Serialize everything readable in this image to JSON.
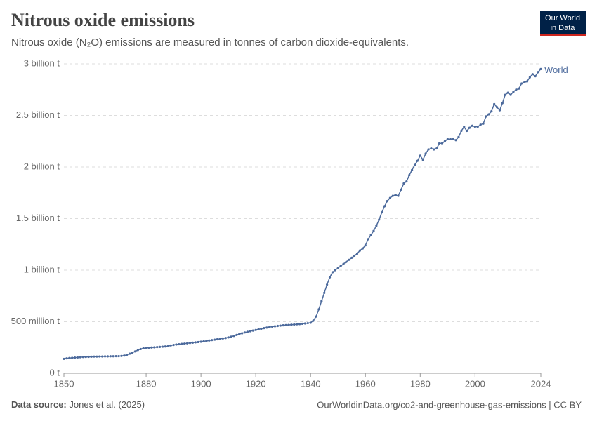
{
  "header": {
    "title": "Nitrous oxide emissions",
    "subtitle": "Nitrous oxide (N₂O) emissions are measured in tonnes of carbon dioxide-equivalents.",
    "logo": [
      "Our World",
      "in Data"
    ]
  },
  "chart_data": {
    "type": "line",
    "x": [
      1850,
      1851,
      1852,
      1853,
      1854,
      1855,
      1856,
      1857,
      1858,
      1859,
      1860,
      1861,
      1862,
      1863,
      1864,
      1865,
      1866,
      1867,
      1868,
      1869,
      1870,
      1871,
      1872,
      1873,
      1874,
      1875,
      1876,
      1877,
      1878,
      1879,
      1880,
      1881,
      1882,
      1883,
      1884,
      1885,
      1886,
      1887,
      1888,
      1889,
      1890,
      1891,
      1892,
      1893,
      1894,
      1895,
      1896,
      1897,
      1898,
      1899,
      1900,
      1901,
      1902,
      1903,
      1904,
      1905,
      1906,
      1907,
      1908,
      1909,
      1910,
      1911,
      1912,
      1913,
      1914,
      1915,
      1916,
      1917,
      1918,
      1919,
      1920,
      1921,
      1922,
      1923,
      1924,
      1925,
      1926,
      1927,
      1928,
      1929,
      1930,
      1931,
      1932,
      1933,
      1934,
      1935,
      1936,
      1937,
      1938,
      1939,
      1940,
      1941,
      1942,
      1943,
      1944,
      1945,
      1946,
      1947,
      1948,
      1949,
      1950,
      1951,
      1952,
      1953,
      1954,
      1955,
      1956,
      1957,
      1958,
      1959,
      1960,
      1961,
      1962,
      1963,
      1964,
      1965,
      1966,
      1967,
      1968,
      1969,
      1970,
      1971,
      1972,
      1973,
      1974,
      1975,
      1976,
      1977,
      1978,
      1979,
      1980,
      1981,
      1982,
      1983,
      1984,
      1985,
      1986,
      1987,
      1988,
      1989,
      1990,
      1991,
      1992,
      1993,
      1994,
      1995,
      1996,
      1997,
      1998,
      1999,
      2000,
      2001,
      2002,
      2003,
      2004,
      2005,
      2006,
      2007,
      2008,
      2009,
      2010,
      2011,
      2012,
      2013,
      2014,
      2015,
      2016,
      2017,
      2018,
      2019,
      2020,
      2021,
      2022,
      2023,
      2024
    ],
    "series": [
      {
        "name": "World",
        "color": "#4c6a9c",
        "values": [
          140000000.0,
          145000000.0,
          148000000.0,
          150000000.0,
          152000000.0,
          154000000.0,
          156000000.0,
          158000000.0,
          159000000.0,
          160000000.0,
          161000000.0,
          162000000.0,
          162000000.0,
          163000000.0,
          163000000.0,
          164000000.0,
          164000000.0,
          165000000.0,
          165000000.0,
          166000000.0,
          166000000.0,
          168000000.0,
          172000000.0,
          180000000.0,
          190000000.0,
          200000000.0,
          212000000.0,
          225000000.0,
          235000000.0,
          242000000.0,
          245000000.0,
          248000000.0,
          250000000.0,
          252000000.0,
          254000000.0,
          256000000.0,
          258000000.0,
          260000000.0,
          263000000.0,
          270000000.0,
          275000000.0,
          279000000.0,
          282000000.0,
          285000000.0,
          288000000.0,
          291000000.0,
          294000000.0,
          297000000.0,
          300000000.0,
          303000000.0,
          306000000.0,
          310000000.0,
          314000000.0,
          318000000.0,
          322000000.0,
          326000000.0,
          330000000.0,
          334000000.0,
          338000000.0,
          342000000.0,
          348000000.0,
          355000000.0,
          362000000.0,
          372000000.0,
          380000000.0,
          388000000.0,
          396000000.0,
          402000000.0,
          408000000.0,
          414000000.0,
          420000000.0,
          426000000.0,
          432000000.0,
          438000000.0,
          443000000.0,
          448000000.0,
          452000000.0,
          456000000.0,
          459000000.0,
          462000000.0,
          465000000.0,
          467000000.0,
          469000000.0,
          471000000.0,
          473000000.0,
          475000000.0,
          477000000.0,
          480000000.0,
          483000000.0,
          486000000.0,
          490000000.0,
          510000000.0,
          550000000.0,
          620000000.0,
          700000000.0,
          780000000.0,
          860000000.0,
          930000000.0,
          980000000.0,
          1000000000.0,
          1020000000.0,
          1040000000.0,
          1060000000.0,
          1080000000.0,
          1100000000.0,
          1120000000.0,
          1140000000.0,
          1160000000.0,
          1190000000.0,
          1210000000.0,
          1240000000.0,
          1300000000.0,
          1340000000.0,
          1380000000.0,
          1430000000.0,
          1490000000.0,
          1560000000.0,
          1620000000.0,
          1670000000.0,
          1700000000.0,
          1720000000.0,
          1730000000.0,
          1720000000.0,
          1780000000.0,
          1840000000.0,
          1860000000.0,
          1920000000.0,
          1970000000.0,
          2020000000.0,
          2060000000.0,
          2110000000.0,
          2070000000.0,
          2130000000.0,
          2170000000.0,
          2180000000.0,
          2170000000.0,
          2180000000.0,
          2230000000.0,
          2230000000.0,
          2250000000.0,
          2270000000.0,
          2270000000.0,
          2270000000.0,
          2260000000.0,
          2290000000.0,
          2350000000.0,
          2390000000.0,
          2350000000.0,
          2380000000.0,
          2400000000.0,
          2390000000.0,
          2390000000.0,
          2410000000.0,
          2420000000.0,
          2490000000.0,
          2510000000.0,
          2540000000.0,
          2610000000.0,
          2580000000.0,
          2550000000.0,
          2620000000.0,
          2700000000.0,
          2720000000.0,
          2700000000.0,
          2730000000.0,
          2750000000.0,
          2760000000.0,
          2810000000.0,
          2820000000.0,
          2830000000.0,
          2870000000.0,
          2900000000.0,
          2880000000.0,
          2920000000.0,
          2950000000.0
        ]
      }
    ],
    "xlim": [
      1850,
      2024
    ],
    "xticks": [
      1850,
      1880,
      1900,
      1920,
      1940,
      1960,
      1980,
      2000,
      2024
    ],
    "ylim": [
      0,
      3000000000
    ],
    "yticks": [
      {
        "value": 0,
        "label": "0 t"
      },
      {
        "value": 500000000,
        "label": "500 million t"
      },
      {
        "value": 1000000000,
        "label": "1 billion t"
      },
      {
        "value": 1500000000,
        "label": "1.5 billion t"
      },
      {
        "value": 2000000000,
        "label": "2 billion t"
      },
      {
        "value": 2500000000,
        "label": "2.5 billion t"
      },
      {
        "value": 3000000000,
        "label": "3 billion t"
      }
    ],
    "grid": true
  },
  "footer": {
    "source_label": "Data source:",
    "source": "Jones et al. (2025)",
    "url": "OurWorldinData.org/co2-and-greenhouse-gas-emissions | CC BY"
  }
}
